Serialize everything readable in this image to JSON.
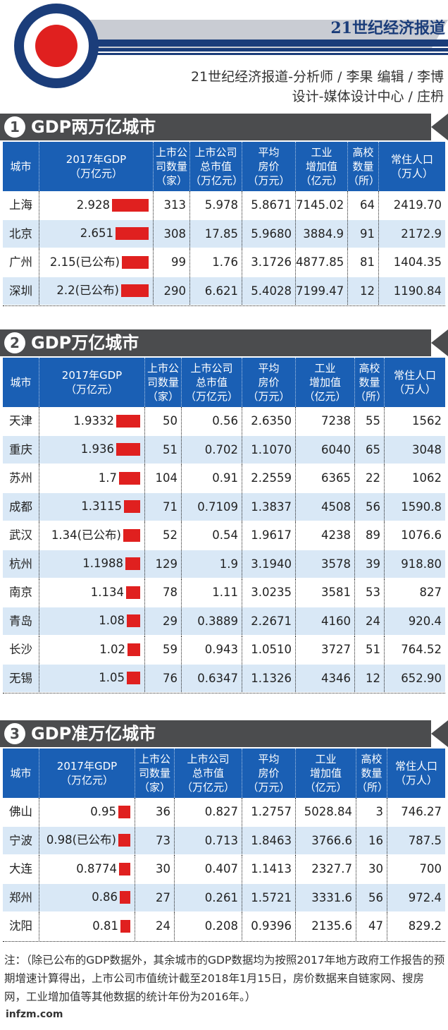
{
  "header": {
    "paper_title": "21世纪经济报道",
    "credit_line_1": "21世纪经济报道-分析师 / 李果    编辑 / 李博",
    "credit_line_2": "设计-媒体设计中心 / 庄枬"
  },
  "colors": {
    "brand_navy": "#1b3d7a",
    "logo_red": "#e0201f",
    "banner_gray": "#4b4c4e",
    "table_header_blue": "#1a5fb4",
    "row_stripe_blue": "#d9e8f6",
    "gdp_bar_red": "#e0201f"
  },
  "columns": [
    "城市",
    "2017年GDP\n（万亿元）",
    "上市公\n司数量\n（家）",
    "上市公司\n总市值\n（万亿元）",
    "平均\n房价\n（万元）",
    "工业\n增加值\n（亿元）",
    "高校\n数量\n（所）",
    "常住人口\n（万人）"
  ],
  "sections": [
    {
      "number": "1",
      "title": "GDP两万亿城市",
      "rows": [
        {
          "city": "上海",
          "gdp_text": "2.928",
          "gdp": 2.928,
          "companies": "313",
          "market_cap": "5.978",
          "house_price": "5.8671",
          "industrial": "7145.02",
          "universities": "64",
          "population": "2419.70"
        },
        {
          "city": "北京",
          "gdp_text": "2.651",
          "gdp": 2.651,
          "companies": "308",
          "market_cap": "17.85",
          "house_price": "5.9680",
          "industrial": "3884.9",
          "universities": "91",
          "population": "2172.9"
        },
        {
          "city": "广州",
          "gdp_text": "2.15(已公布)",
          "gdp": 2.15,
          "companies": "99",
          "market_cap": "1.76",
          "house_price": "3.1726",
          "industrial": "4877.85",
          "universities": "81",
          "population": "1404.35"
        },
        {
          "city": "深圳",
          "gdp_text": "2.2(已公布)",
          "gdp": 2.2,
          "companies": "290",
          "market_cap": "6.621",
          "house_price": "5.4028",
          "industrial": "7199.47",
          "universities": "12",
          "population": "1190.84"
        }
      ]
    },
    {
      "number": "2",
      "title": "GDP万亿城市",
      "rows": [
        {
          "city": "天津",
          "gdp_text": "1.9332",
          "gdp": 1.9332,
          "companies": "50",
          "market_cap": "0.56",
          "house_price": "2.6350",
          "industrial": "7238",
          "universities": "55",
          "population": "1562"
        },
        {
          "city": "重庆",
          "gdp_text": "1.936",
          "gdp": 1.936,
          "companies": "51",
          "market_cap": "0.702",
          "house_price": "1.1070",
          "industrial": "6040",
          "universities": "65",
          "population": "3048"
        },
        {
          "city": "苏州",
          "gdp_text": "1.7",
          "gdp": 1.7,
          "companies": "104",
          "market_cap": "0.91",
          "house_price": "2.2559",
          "industrial": "6365",
          "universities": "22",
          "population": "1062"
        },
        {
          "city": "成都",
          "gdp_text": "1.3115",
          "gdp": 1.3115,
          "companies": "71",
          "market_cap": "0.7109",
          "house_price": "1.3837",
          "industrial": "4508",
          "universities": "56",
          "population": "1590.8"
        },
        {
          "city": "武汉",
          "gdp_text": "1.34(已公布)",
          "gdp": 1.34,
          "companies": "52",
          "market_cap": "0.54",
          "house_price": "1.9617",
          "industrial": "4238",
          "universities": "89",
          "population": "1076.6"
        },
        {
          "city": "杭州",
          "gdp_text": "1.1988",
          "gdp": 1.1988,
          "companies": "129",
          "market_cap": "1.9",
          "house_price": "3.1940",
          "industrial": "3578",
          "universities": "39",
          "population": "918.80"
        },
        {
          "city": "南京",
          "gdp_text": "1.134",
          "gdp": 1.134,
          "companies": "78",
          "market_cap": "1.11",
          "house_price": "3.0235",
          "industrial": "3581",
          "universities": "53",
          "population": "827"
        },
        {
          "city": "青岛",
          "gdp_text": "1.08",
          "gdp": 1.08,
          "companies": "29",
          "market_cap": "0.3889",
          "house_price": "2.2671",
          "industrial": "4160",
          "universities": "24",
          "population": "920.4"
        },
        {
          "city": "长沙",
          "gdp_text": "1.02",
          "gdp": 1.02,
          "companies": "59",
          "market_cap": "0.943",
          "house_price": "1.0510",
          "industrial": "3727",
          "universities": "51",
          "population": "764.52"
        },
        {
          "city": "无锡",
          "gdp_text": "1.05",
          "gdp": 1.05,
          "companies": "76",
          "market_cap": "0.6347",
          "house_price": "1.1326",
          "industrial": "4346",
          "universities": "12",
          "population": "652.90"
        }
      ]
    },
    {
      "number": "3",
      "title": "GDP准万亿城市",
      "rows": [
        {
          "city": "佛山",
          "gdp_text": "0.95",
          "gdp": 0.95,
          "companies": "36",
          "market_cap": "0.827",
          "house_price": "1.2757",
          "industrial": "5028.84",
          "universities": "3",
          "population": "746.27"
        },
        {
          "city": "宁波",
          "gdp_text": "0.98(已公布)",
          "gdp": 0.98,
          "companies": "73",
          "market_cap": "0.713",
          "house_price": "1.8463",
          "industrial": "3766.6",
          "universities": "16",
          "population": "787.5"
        },
        {
          "city": "大连",
          "gdp_text": "0.8774",
          "gdp": 0.8774,
          "companies": "30",
          "market_cap": "0.407",
          "house_price": "1.1413",
          "industrial": "2327.7",
          "universities": "30",
          "population": "700"
        },
        {
          "city": "郑州",
          "gdp_text": "0.86",
          "gdp": 0.86,
          "companies": "27",
          "market_cap": "0.261",
          "house_price": "1.5721",
          "industrial": "3331.6",
          "universities": "56",
          "population": "972.4"
        },
        {
          "city": "沈阳",
          "gdp_text": "0.81",
          "gdp": 0.81,
          "companies": "24",
          "market_cap": "0.208",
          "house_price": "0.9396",
          "industrial": "2135.6",
          "universities": "47",
          "population": "829.2"
        }
      ]
    }
  ],
  "note": "注：（除已公布的GDP数据外，其余城市的GDP数据均为按照2017年地方政府工作报告的预期增速计算得出，上市公司市值统计截至2018年1月15日，房价数据来自链家网、搜房网，工业增加值等其他数据的统计年份为2016年。）",
  "site": "infzm.com"
}
